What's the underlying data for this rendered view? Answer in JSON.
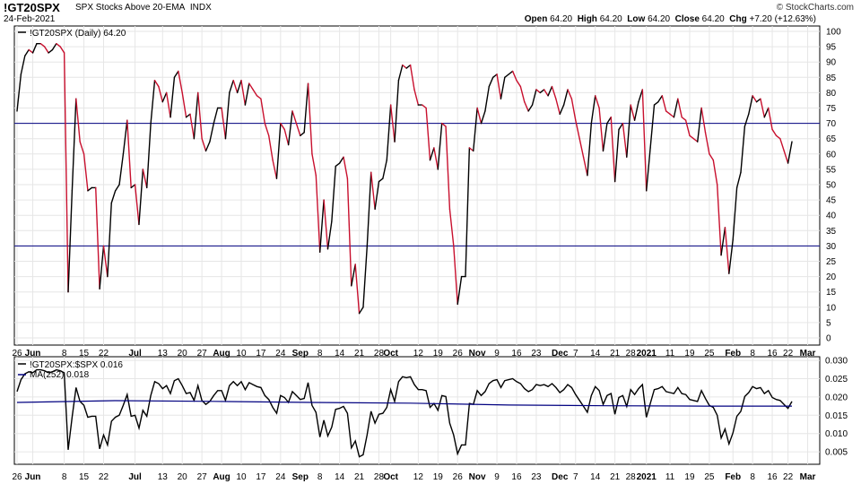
{
  "header": {
    "ticker": "!GT20SPX",
    "description": "SPX Stocks Above 20-EMA",
    "exchange": "INDX",
    "date": "24-Feb-2021",
    "brand": "© StockCharts.com",
    "ohlc": [
      {
        "label": "Open",
        "value": "64.20"
      },
      {
        "label": "High",
        "value": "64.20"
      },
      {
        "label": "Low",
        "value": "64.20"
      },
      {
        "label": "Close",
        "value": "64.20"
      },
      {
        "label": "Chg",
        "value": "+7.20 (+12.63%)"
      }
    ]
  },
  "chart_data": [
    {
      "type": "line",
      "legend": "!GT20SPX (Daily) 64.20",
      "ylim": [
        0,
        100
      ],
      "yticks": [
        0,
        5,
        10,
        15,
        20,
        25,
        30,
        35,
        40,
        45,
        50,
        55,
        60,
        65,
        70,
        75,
        80,
        85,
        90,
        95,
        100
      ],
      "reference_lines": [
        70,
        30
      ],
      "colors": {
        "up": "#000000",
        "down": "#c8102e",
        "reference": "#000080"
      },
      "values": [
        74,
        86,
        92,
        94,
        93,
        96,
        96,
        95,
        93,
        94,
        96,
        95,
        93,
        15,
        48,
        78,
        64,
        60,
        48,
        49,
        49,
        16,
        30,
        20,
        44,
        48,
        50,
        60,
        71,
        49,
        50,
        37,
        55,
        49,
        70,
        84,
        82,
        77,
        80,
        72,
        85,
        87,
        80,
        72,
        73,
        65,
        80,
        65,
        61,
        64,
        70,
        75,
        75,
        65,
        80,
        84,
        80,
        84,
        76,
        83,
        81,
        79,
        78,
        70,
        66,
        58,
        52,
        70,
        68,
        63,
        74,
        70,
        66,
        67,
        83,
        60,
        53,
        28,
        45,
        29,
        38,
        56,
        57,
        59,
        52,
        17,
        24,
        8,
        10,
        30,
        54,
        42,
        51,
        52,
        58,
        76,
        64,
        84,
        89,
        88,
        89,
        81,
        76,
        76,
        75,
        58,
        62,
        55,
        70,
        69,
        42,
        30,
        11,
        20,
        20,
        62,
        61,
        75,
        70,
        74,
        82,
        85,
        86,
        78,
        85,
        86,
        87,
        84,
        82,
        77,
        74,
        76,
        81,
        80,
        81,
        79,
        82,
        78,
        73,
        76,
        81,
        78,
        71,
        65,
        59,
        53,
        70,
        79,
        75,
        61,
        70,
        72,
        51,
        68,
        70,
        59,
        76,
        71,
        77,
        81,
        48,
        62,
        76,
        77,
        79,
        74,
        73,
        72,
        78,
        72,
        71,
        66,
        65,
        64,
        75,
        67,
        60,
        58,
        50,
        27,
        36,
        21,
        32,
        49,
        54,
        69,
        73,
        79,
        77,
        78,
        72,
        75,
        68,
        66,
        65,
        61,
        57,
        64
      ],
      "xticks": [
        {
          "label": "26",
          "i": 0
        },
        {
          "label": "Jun",
          "i": 4
        },
        {
          "label": "8",
          "i": 12
        },
        {
          "label": "15",
          "i": 17
        },
        {
          "label": "22",
          "i": 22
        },
        {
          "label": "Jul",
          "i": 30
        },
        {
          "label": "13",
          "i": 37
        },
        {
          "label": "20",
          "i": 42
        },
        {
          "label": "27",
          "i": 47
        },
        {
          "label": "Aug",
          "i": 52
        },
        {
          "label": "10",
          "i": 57
        },
        {
          "label": "17",
          "i": 62
        },
        {
          "label": "24",
          "i": 67
        },
        {
          "label": "Sep",
          "i": 72
        },
        {
          "label": "8",
          "i": 77
        },
        {
          "label": "14",
          "i": 82
        },
        {
          "label": "21",
          "i": 87
        },
        {
          "label": "28",
          "i": 92
        },
        {
          "label": "Oct",
          "i": 95
        },
        {
          "label": "12",
          "i": 102
        },
        {
          "label": "19",
          "i": 107
        },
        {
          "label": "26",
          "i": 112
        },
        {
          "label": "Nov",
          "i": 117
        },
        {
          "label": "9",
          "i": 122
        },
        {
          "label": "16",
          "i": 127
        },
        {
          "label": "23",
          "i": 132
        },
        {
          "label": "Dec",
          "i": 138
        },
        {
          "label": "7",
          "i": 142
        },
        {
          "label": "14",
          "i": 147
        },
        {
          "label": "21",
          "i": 152
        },
        {
          "label": "28",
          "i": 156
        },
        {
          "label": "2021",
          "i": 160
        },
        {
          "label": "11",
          "i": 166
        },
        {
          "label": "19",
          "i": 171
        },
        {
          "label": "25",
          "i": 176
        },
        {
          "label": "Feb",
          "i": 182
        },
        {
          "label": "8",
          "i": 187
        },
        {
          "label": "16",
          "i": 192
        },
        {
          "label": "22",
          "i": 196
        },
        {
          "label": "Mar",
          "i": 201
        }
      ]
    },
    {
      "type": "line",
      "series": [
        {
          "name": "!GT20SPX:$SPX 0.016",
          "color": "#000000"
        },
        {
          "name": "MA(252) 0.018",
          "color": "#000080",
          "values": [
            0.0185,
            0.019,
            0.0188,
            0.0185,
            0.0183,
            0.0178,
            0.0176,
            0.0175,
            0.0175
          ]
        }
      ],
      "ma_x": [
        0,
        25,
        50,
        75,
        100,
        125,
        150,
        175,
        197
      ],
      "ylim": [
        0.0016,
        0.031
      ],
      "yticks": [
        0.005,
        0.01,
        0.015,
        0.02,
        0.025,
        0.03
      ],
      "ytick_labels": [
        "0.005",
        "0.010",
        "0.015",
        "0.020",
        "0.025",
        "0.030"
      ]
    }
  ]
}
